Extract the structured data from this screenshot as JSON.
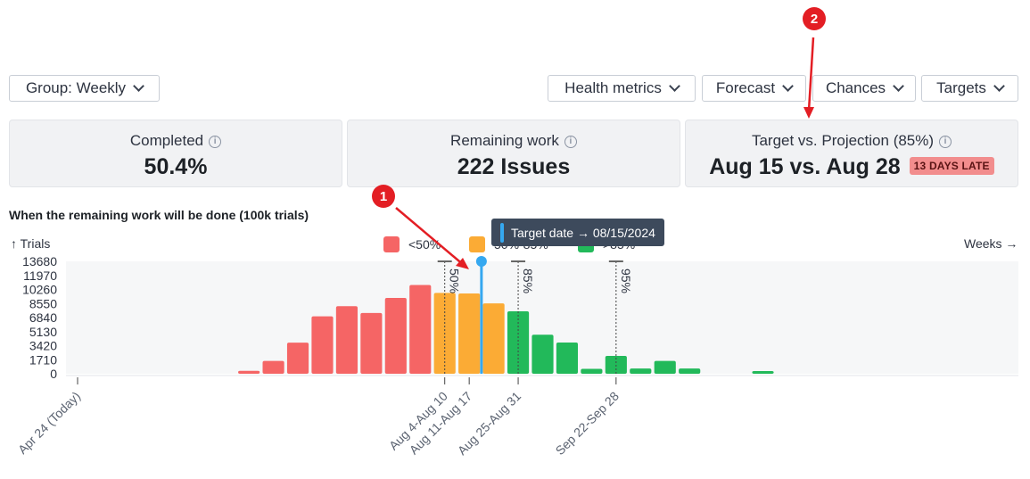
{
  "toolbar": {
    "group_label": "Group: Weekly",
    "health_label": "Health metrics",
    "forecast_label": "Forecast",
    "chances_label": "Chances",
    "targets_label": "Targets"
  },
  "cards": {
    "completed": {
      "label": "Completed",
      "value": "50.4%"
    },
    "remaining": {
      "label": "Remaining work",
      "value": "222 Issues"
    },
    "target": {
      "label": "Target vs. Projection (85%)",
      "value": "Aug 15 vs. Aug 28",
      "badge": "13 DAYS LATE"
    }
  },
  "chart_caption": "When the remaining work will be done (100k trials)",
  "axis_header_left": "↑ Trials",
  "axis_header_right": "Weeks →",
  "legend": [
    {
      "label": "<50%",
      "color": "#f56565"
    },
    {
      "label": "50%-85%",
      "color": "#fbab35"
    },
    {
      "label": ">85%",
      "color": "#22b95a"
    }
  ],
  "tooltip": {
    "text": "Target date → 08/15/2024",
    "color": "#35a8f0"
  },
  "markers": {
    "m1": "1",
    "m2": "2"
  },
  "colors": {
    "accent_red": "#e31e24",
    "low": "#f56565",
    "mid": "#fbab35",
    "high": "#22b95a",
    "target": "#35a8f0"
  },
  "chart_data": {
    "type": "bar",
    "title": "When the remaining work will be done (100k trials)",
    "ylabel": "↑ Trials",
    "xlabel": "Weeks →",
    "yticks": [
      0,
      1710,
      3420,
      5130,
      6840,
      8550,
      10260,
      11970,
      13680
    ],
    "ylim": [
      0,
      13680
    ],
    "week_index_range": [
      0,
      38
    ],
    "series": [
      {
        "name": "<50%",
        "color": "#f56565",
        "points": [
          [
            7,
            350
          ],
          [
            8,
            1560
          ],
          [
            9,
            3780
          ],
          [
            10,
            6990
          ],
          [
            11,
            8220
          ],
          [
            12,
            7400
          ],
          [
            13,
            9230
          ],
          [
            14,
            10800
          ]
        ]
      },
      {
        "name": "50%-85%",
        "color": "#fbab35",
        "points": [
          [
            15,
            9840
          ],
          [
            16,
            9770
          ],
          [
            17,
            8570
          ]
        ]
      },
      {
        "name": ">85%",
        "color": "#22b95a",
        "points": [
          [
            18,
            7600
          ],
          [
            19,
            4750
          ],
          [
            20,
            3800
          ],
          [
            21,
            600
          ],
          [
            22,
            2170
          ],
          [
            23,
            640
          ],
          [
            24,
            1560
          ],
          [
            25,
            640
          ],
          [
            28,
            320
          ]
        ]
      }
    ],
    "x_tick_labels": [
      {
        "week": 0,
        "label": "Apr 24 (Today)"
      },
      {
        "week": 15,
        "label": "Aug 4-Aug 10"
      },
      {
        "week": 16,
        "label": "Aug 11-Aug 17"
      },
      {
        "week": 18,
        "label": "Aug 25-Aug 31"
      },
      {
        "week": 22,
        "label": "Sep 22-Sep 28"
      }
    ],
    "percentile_lines": [
      {
        "week": 15,
        "label": "50%"
      },
      {
        "week": 18,
        "label": "85%"
      },
      {
        "week": 22,
        "label": "95%"
      }
    ],
    "target_line": {
      "week": 16.5,
      "label": "Target date → 08/15/2024"
    },
    "grid": false,
    "legend_position": "top"
  }
}
